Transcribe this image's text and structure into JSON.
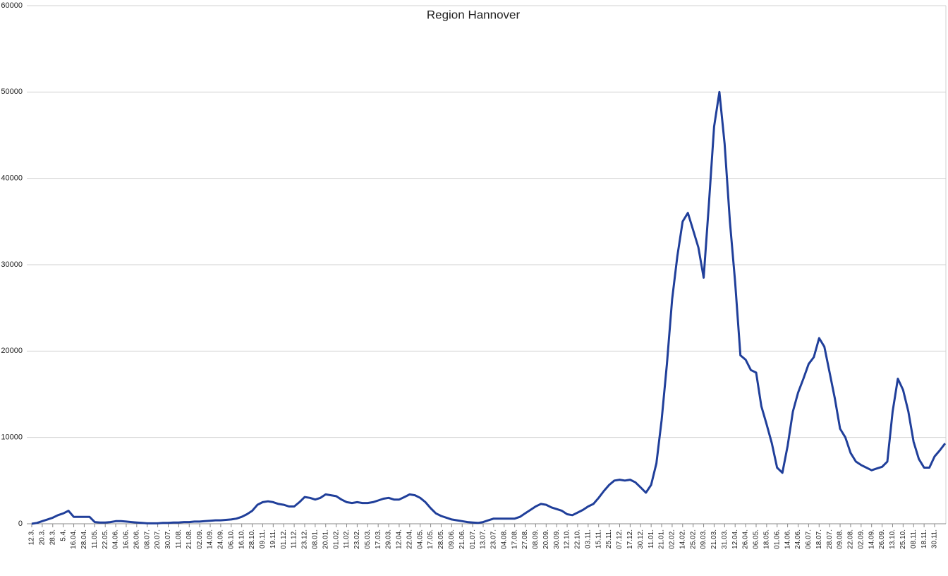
{
  "chart_data": {
    "type": "line",
    "title": "Region Hannover",
    "categories": [
      "12.3.",
      null,
      "20.3.",
      null,
      "28.3.",
      null,
      "5.4.",
      null,
      "16.04.",
      null,
      "28.04.",
      null,
      "11.05.",
      null,
      "22.05.",
      null,
      "04.06.",
      null,
      "16.06.",
      null,
      "26.06.",
      null,
      "08.07.",
      null,
      "20.07.",
      null,
      "30.07.",
      null,
      "11.08.",
      null,
      "21.08.",
      null,
      "02.09.",
      null,
      "14.09.",
      null,
      "24.09.",
      null,
      "06.10.",
      null,
      "16.10.",
      null,
      "28.10.",
      null,
      "09.11.",
      null,
      "19.11.",
      null,
      "01.12.",
      null,
      "11.12.",
      null,
      "23.12.",
      null,
      "08.01.",
      null,
      "20.01.",
      null,
      "01.02.",
      null,
      "11.02.",
      null,
      "23.02.",
      null,
      "05.03.",
      null,
      "17.03.",
      null,
      "29.03.",
      null,
      "12.04.",
      null,
      "22.04.",
      null,
      "04.05.",
      null,
      "17.05.",
      null,
      "28.05.",
      null,
      "09.06.",
      null,
      "21.06.",
      null,
      "01.07.",
      null,
      "13.07.",
      null,
      "23.07.",
      null,
      "04.08.",
      null,
      "17.08.",
      null,
      "27.08.",
      null,
      "08.09.",
      null,
      "20.09.",
      null,
      "30.09.",
      null,
      "12.10.",
      null,
      "22.10.",
      null,
      "03.11.",
      null,
      "15.11.",
      null,
      "25.11.",
      null,
      "07.12.",
      null,
      "17.12.",
      null,
      "30.12.",
      null,
      "11.01.",
      null,
      "21.01.",
      null,
      "02.02.",
      null,
      "14.02.",
      null,
      "25.02.",
      null,
      "09.03.",
      null,
      "21.03.",
      null,
      "31.03.",
      null,
      "12.04.",
      null,
      "26.04.",
      null,
      "06.05.",
      null,
      "18.05.",
      null,
      "01.06.",
      null,
      "14.06.",
      null,
      "24.06.",
      null,
      "06.07.",
      null,
      "18.07.",
      null,
      "28.07.",
      null,
      "09.08.",
      null,
      "22.08.",
      null,
      "02.09.",
      null,
      "14.09.",
      null,
      "26.09.",
      null,
      "13.10.",
      null,
      "25.10.",
      null,
      "08.11.",
      null,
      "18.11.",
      null,
      "30.11.",
      null,
      null
    ],
    "values": [
      0,
      100,
      300,
      500,
      700,
      1000,
      1200,
      1500,
      800,
      800,
      800,
      800,
      200,
      150,
      150,
      200,
      300,
      300,
      250,
      200,
      150,
      100,
      50,
      50,
      50,
      100,
      100,
      150,
      150,
      200,
      200,
      250,
      250,
      300,
      350,
      400,
      400,
      450,
      500,
      600,
      800,
      1100,
      1500,
      2200,
      2500,
      2600,
      2500,
      2300,
      2200,
      2000,
      2000,
      2500,
      3100,
      3000,
      2800,
      3000,
      3400,
      3300,
      3200,
      2800,
      2500,
      2400,
      2500,
      2400,
      2400,
      2500,
      2700,
      2900,
      3000,
      2800,
      2800,
      3100,
      3400,
      3300,
      3000,
      2500,
      1800,
      1200,
      900,
      700,
      500,
      400,
      300,
      200,
      150,
      100,
      200,
      400,
      600,
      600,
      600,
      600,
      600,
      800,
      1200,
      1600,
      2000,
      2300,
      2200,
      1900,
      1700,
      1500,
      1100,
      1000,
      1300,
      1600,
      2000,
      2300,
      3000,
      3800,
      4500,
      5000,
      5100,
      5000,
      5100,
      4800,
      4200,
      3600,
      4500,
      7000,
      12000,
      18500,
      26000,
      31000,
      35000,
      36000,
      34000,
      32000,
      28500,
      37000,
      46000,
      50000,
      44000,
      35000,
      28000,
      19500,
      19000,
      17800,
      17500,
      13600,
      11500,
      9300,
      6500,
      5900,
      9000,
      13000,
      15200,
      16800,
      18500,
      19300,
      21500,
      20500,
      17500,
      14500,
      11000,
      10000,
      8200,
      7200,
      6800,
      6500,
      6200,
      6400,
      6600,
      7200,
      13000,
      16800,
      15500,
      13000,
      9500,
      7500,
      6500,
      6500,
      7800,
      8500,
      9300
    ],
    "color": "#203f9a",
    "ylim": [
      0,
      60000
    ],
    "yticks": [
      0,
      10000,
      20000,
      30000,
      40000,
      50000,
      60000
    ],
    "grid": true
  }
}
